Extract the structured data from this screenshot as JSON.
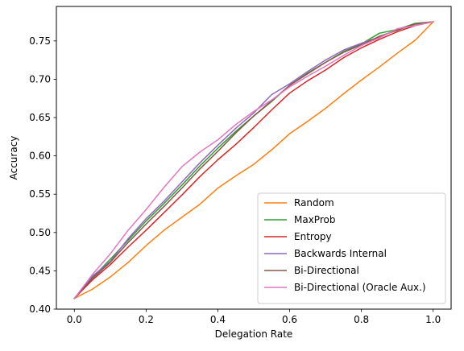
{
  "chart_data": {
    "type": "line",
    "title": "",
    "xlabel": "Delegation Rate",
    "ylabel": "Accuracy",
    "xlim": [
      -0.05,
      1.05
    ],
    "ylim": [
      0.4,
      0.795
    ],
    "xticks": [
      0.0,
      0.2,
      0.4,
      0.6,
      0.8,
      1.0
    ],
    "xtick_labels": [
      "0.0",
      "0.2",
      "0.4",
      "0.6",
      "0.8",
      "1.0"
    ],
    "yticks": [
      0.4,
      0.45,
      0.5,
      0.55,
      0.6,
      0.65,
      0.7,
      0.75
    ],
    "ytick_labels": [
      "0.40",
      "0.45",
      "0.50",
      "0.55",
      "0.60",
      "0.65",
      "0.70",
      "0.75"
    ],
    "grid": false,
    "legend_position": "lower-right",
    "series": [
      {
        "name": "Random",
        "color": "#ff7f0e",
        "x": [
          0.0,
          0.05,
          0.1,
          0.15,
          0.2,
          0.25,
          0.3,
          0.35,
          0.4,
          0.45,
          0.5,
          0.55,
          0.6,
          0.65,
          0.7,
          0.75,
          0.8,
          0.85,
          0.9,
          0.95,
          1.0
        ],
        "y": [
          0.414,
          0.426,
          0.442,
          0.461,
          0.483,
          0.503,
          0.52,
          0.537,
          0.558,
          0.574,
          0.589,
          0.608,
          0.629,
          0.645,
          0.662,
          0.681,
          0.699,
          0.716,
          0.734,
          0.751,
          0.775
        ]
      },
      {
        "name": "MaxProb",
        "color": "#2ca02c",
        "x": [
          0.0,
          0.05,
          0.1,
          0.15,
          0.2,
          0.25,
          0.3,
          0.35,
          0.4,
          0.45,
          0.5,
          0.55,
          0.6,
          0.65,
          0.7,
          0.75,
          0.8,
          0.85,
          0.9,
          0.95,
          1.0
        ],
        "y": [
          0.414,
          0.441,
          0.465,
          0.49,
          0.515,
          0.538,
          0.562,
          0.587,
          0.61,
          0.632,
          0.652,
          0.671,
          0.692,
          0.708,
          0.722,
          0.736,
          0.746,
          0.76,
          0.765,
          0.773,
          0.775
        ]
      },
      {
        "name": "Entropy",
        "color": "#d62728",
        "x": [
          0.0,
          0.05,
          0.1,
          0.15,
          0.2,
          0.25,
          0.3,
          0.35,
          0.4,
          0.45,
          0.5,
          0.55,
          0.6,
          0.65,
          0.7,
          0.75,
          0.8,
          0.85,
          0.9,
          0.95,
          1.0
        ],
        "y": [
          0.414,
          0.438,
          0.458,
          0.481,
          0.503,
          0.526,
          0.549,
          0.573,
          0.595,
          0.615,
          0.637,
          0.66,
          0.682,
          0.698,
          0.712,
          0.728,
          0.741,
          0.752,
          0.762,
          0.77,
          0.775
        ]
      },
      {
        "name": "Backwards Internal",
        "color": "#9467bd",
        "x": [
          0.0,
          0.05,
          0.1,
          0.15,
          0.2,
          0.25,
          0.3,
          0.35,
          0.4,
          0.45,
          0.5,
          0.55,
          0.6,
          0.65,
          0.7,
          0.75,
          0.8,
          0.85,
          0.9,
          0.95,
          1.0
        ],
        "y": [
          0.414,
          0.443,
          0.462,
          0.492,
          0.518,
          0.541,
          0.566,
          0.591,
          0.614,
          0.636,
          0.656,
          0.68,
          0.694,
          0.71,
          0.725,
          0.738,
          0.747,
          0.755,
          0.765,
          0.772,
          0.775
        ]
      },
      {
        "name": "Bi-Directional",
        "color": "#8c564b",
        "x": [
          0.0,
          0.05,
          0.1,
          0.15,
          0.2,
          0.25,
          0.3,
          0.35,
          0.4,
          0.45,
          0.5,
          0.55,
          0.6,
          0.65,
          0.7,
          0.75,
          0.8,
          0.85,
          0.9,
          0.95,
          1.0
        ],
        "y": [
          0.414,
          0.44,
          0.461,
          0.487,
          0.511,
          0.534,
          0.558,
          0.583,
          0.606,
          0.63,
          0.652,
          0.672,
          0.692,
          0.707,
          0.722,
          0.735,
          0.745,
          0.756,
          0.764,
          0.772,
          0.775
        ]
      },
      {
        "name": "Bi-Directional (Oracle Aux.)",
        "color": "#e377c2",
        "x": [
          0.0,
          0.05,
          0.1,
          0.15,
          0.2,
          0.25,
          0.3,
          0.35,
          0.4,
          0.45,
          0.5,
          0.55,
          0.6,
          0.65,
          0.7,
          0.75,
          0.8,
          0.85,
          0.9,
          0.95,
          1.0
        ],
        "y": [
          0.414,
          0.445,
          0.472,
          0.503,
          0.53,
          0.559,
          0.586,
          0.605,
          0.621,
          0.641,
          0.658,
          0.673,
          0.69,
          0.704,
          0.717,
          0.731,
          0.744,
          0.754,
          0.766,
          0.77,
          0.775
        ]
      }
    ]
  }
}
